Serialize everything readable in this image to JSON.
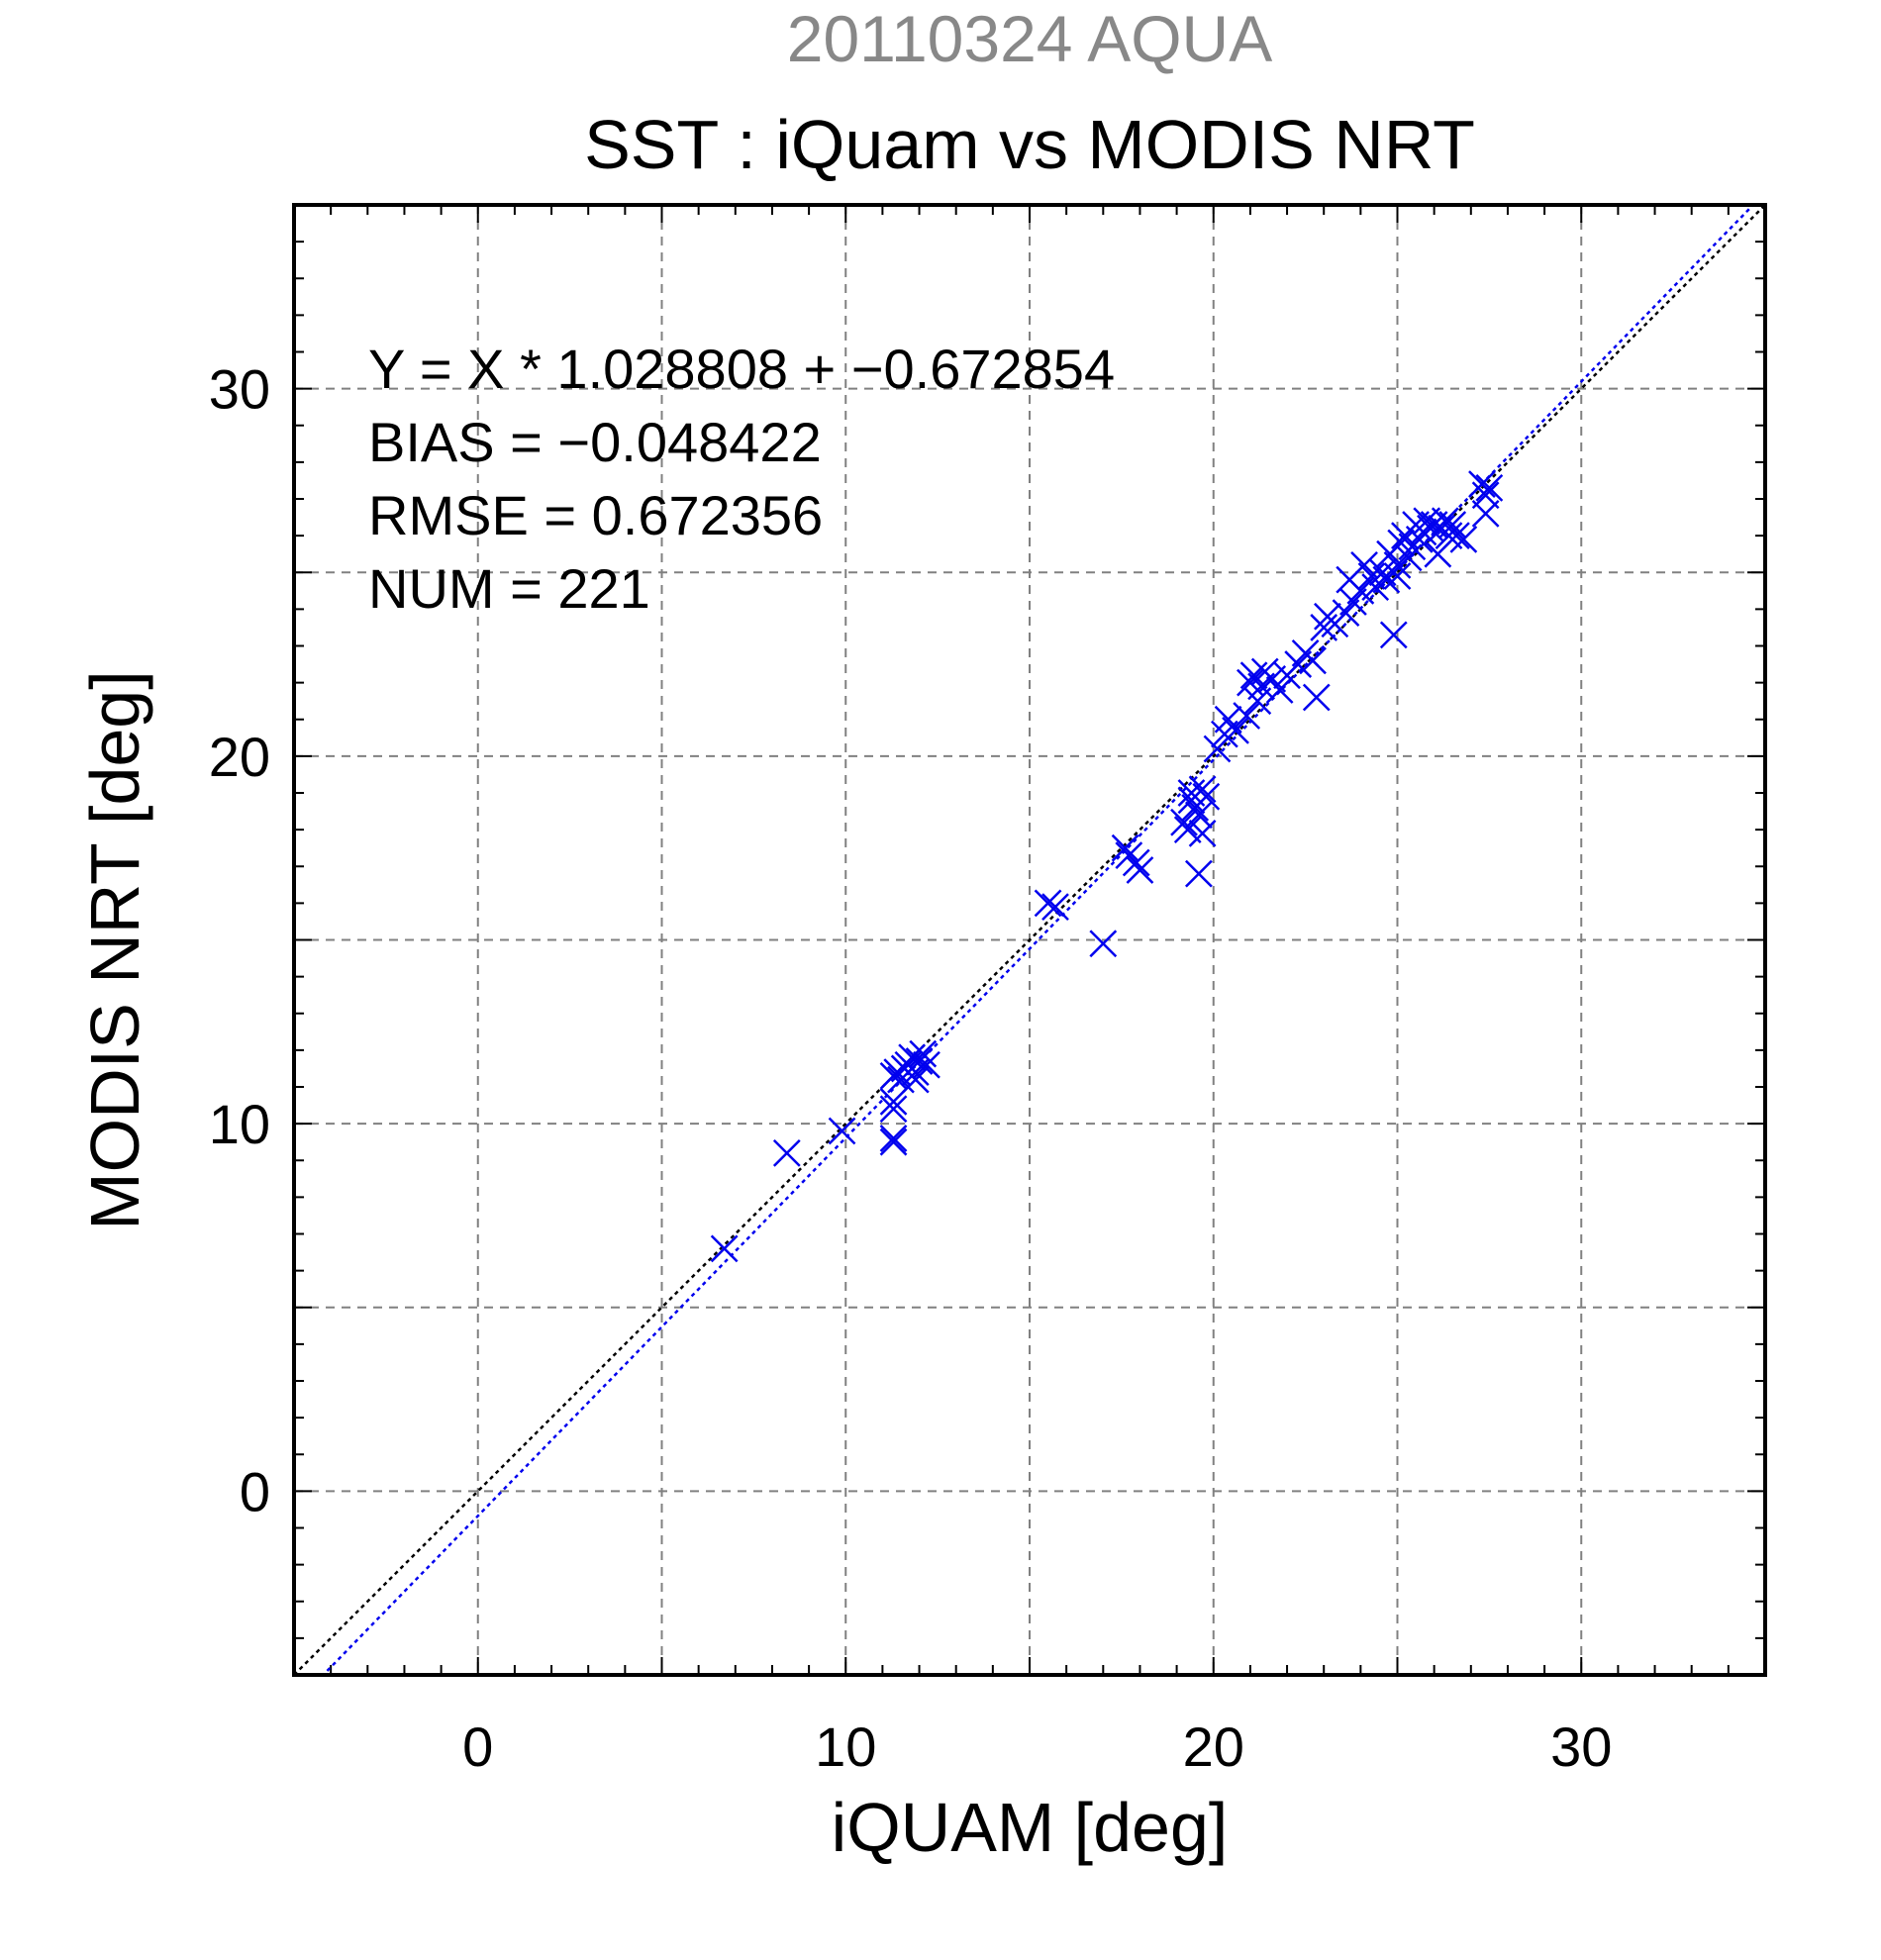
{
  "chart_data": {
    "type": "scatter",
    "supertitle": "20110324 AQUA",
    "title": "SST : iQuam vs MODIS NRT",
    "xlabel": "iQUAM [deg]",
    "ylabel": "MODIS NRT [deg]",
    "xlim": [
      -5,
      35
    ],
    "ylim": [
      -5,
      35
    ],
    "xticks": [
      0,
      10,
      20,
      30
    ],
    "yticks": [
      0,
      10,
      20,
      30
    ],
    "grid": true,
    "stats": [
      "Y = X * 1.028808 + −0.672854",
      "BIAS = −0.048422",
      "RMSE = 0.672356",
      "NUM = 221"
    ],
    "lines": [
      {
        "role": "one-to-one",
        "slope": 1,
        "intercept": 0,
        "color": "#000000",
        "style": "dotted"
      },
      {
        "role": "regression fit",
        "slope": 1.028808,
        "intercept": -0.672854,
        "color": "#0000ee",
        "style": "dotted"
      }
    ],
    "marker": "x",
    "colors": {
      "points": "#0000ee",
      "supertitle": "#888888",
      "grid": "#808080",
      "axes": "#000000"
    },
    "points": [
      [
        6.7,
        6.6
      ],
      [
        8.4,
        9.2
      ],
      [
        9.9,
        9.8
      ],
      [
        11.3,
        9.6
      ],
      [
        11.3,
        9.5
      ],
      [
        11.3,
        10.4
      ],
      [
        11.3,
        10.6
      ],
      [
        11.3,
        11.3
      ],
      [
        11.4,
        11.4
      ],
      [
        11.5,
        11.2
      ],
      [
        11.7,
        11.6
      ],
      [
        11.8,
        11.8
      ],
      [
        11.9,
        11.4
      ],
      [
        12.0,
        11.7
      ],
      [
        12.1,
        11.9
      ],
      [
        12.2,
        11.6
      ],
      [
        11.6,
        11.5
      ],
      [
        11.9,
        11.2
      ],
      [
        15.5,
        16.0
      ],
      [
        15.7,
        15.9
      ],
      [
        17.0,
        14.9
      ],
      [
        17.6,
        17.5
      ],
      [
        17.7,
        17.3
      ],
      [
        17.9,
        17.1
      ],
      [
        18.0,
        16.9
      ],
      [
        19.2,
        18.2
      ],
      [
        19.3,
        18.0
      ],
      [
        19.4,
        18.8
      ],
      [
        19.4,
        19.0
      ],
      [
        19.5,
        18.6
      ],
      [
        19.6,
        18.4
      ],
      [
        19.7,
        19.1
      ],
      [
        19.7,
        17.9
      ],
      [
        19.6,
        16.8
      ],
      [
        19.8,
        18.9
      ],
      [
        20.1,
        20.2
      ],
      [
        20.3,
        20.6
      ],
      [
        20.4,
        21.0
      ],
      [
        20.6,
        20.7
      ],
      [
        20.9,
        21.1
      ],
      [
        21.0,
        22.0
      ],
      [
        21.1,
        22.2
      ],
      [
        21.2,
        21.5
      ],
      [
        21.3,
        21.9
      ],
      [
        21.4,
        22.3
      ],
      [
        21.6,
        22.1
      ],
      [
        21.8,
        21.8
      ],
      [
        22.0,
        22.2
      ],
      [
        22.3,
        22.5
      ],
      [
        22.5,
        22.8
      ],
      [
        22.7,
        22.6
      ],
      [
        22.8,
        21.6
      ],
      [
        23.0,
        23.5
      ],
      [
        23.1,
        23.8
      ],
      [
        23.3,
        23.6
      ],
      [
        23.6,
        23.9
      ],
      [
        23.7,
        24.8
      ],
      [
        23.8,
        24.2
      ],
      [
        24.0,
        24.5
      ],
      [
        24.1,
        25.2
      ],
      [
        24.3,
        24.9
      ],
      [
        24.4,
        24.6
      ],
      [
        24.6,
        25.0
      ],
      [
        24.7,
        24.8
      ],
      [
        24.8,
        25.5
      ],
      [
        24.9,
        23.3
      ],
      [
        25.0,
        25.2
      ],
      [
        25.0,
        24.9
      ],
      [
        25.1,
        25.8
      ],
      [
        25.2,
        26.0
      ],
      [
        25.3,
        25.4
      ],
      [
        25.4,
        25.7
      ],
      [
        25.5,
        26.3
      ],
      [
        25.6,
        25.9
      ],
      [
        25.7,
        26.1
      ],
      [
        25.8,
        26.4
      ],
      [
        25.9,
        26.2
      ],
      [
        26.0,
        26.3
      ],
      [
        26.1,
        25.5
      ],
      [
        26.2,
        26.2
      ],
      [
        26.3,
        26.4
      ],
      [
        26.4,
        26.0
      ],
      [
        26.5,
        26.3
      ],
      [
        26.6,
        26.0
      ],
      [
        26.8,
        25.9
      ],
      [
        27.3,
        27.4
      ],
      [
        27.4,
        26.6
      ],
      [
        27.4,
        27.1
      ],
      [
        27.5,
        27.3
      ]
    ]
  }
}
